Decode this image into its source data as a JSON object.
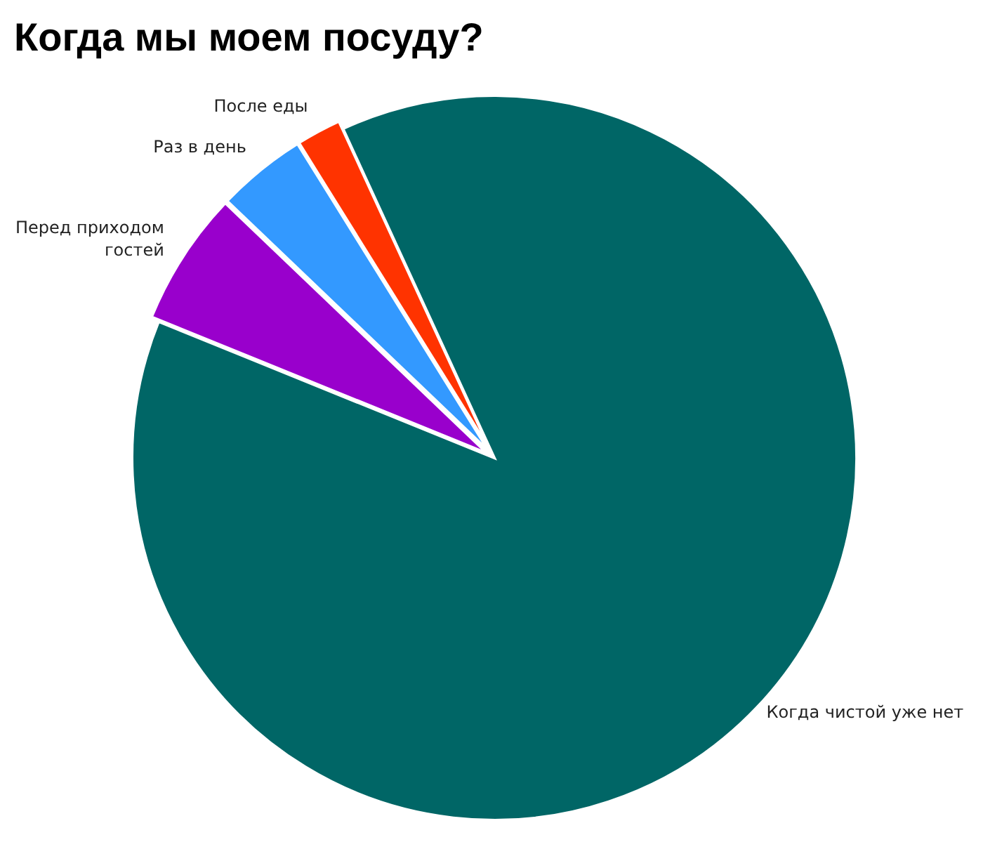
{
  "chart_data": {
    "type": "pie",
    "title": "Когда мы моем посуду?",
    "categories": [
      "Когда чистой уже нет",
      "Перед приходом гостей",
      "Раз в день",
      "После еды"
    ],
    "values": [
      88,
      6,
      4,
      2
    ],
    "colors": [
      "#006666",
      "#9900cc",
      "#3399ff",
      "#ff3300"
    ]
  }
}
